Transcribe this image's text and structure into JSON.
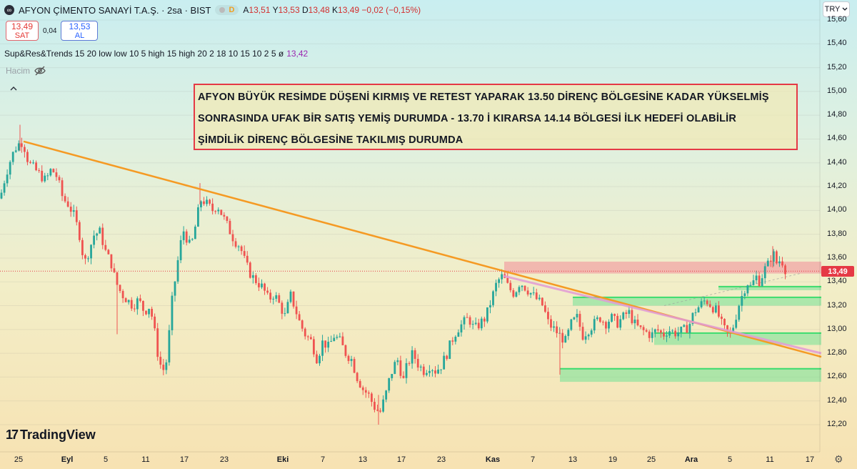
{
  "symbol": {
    "logo_icon": "∞",
    "title": "AFYON ÇİMENTO SANAYİ T.A.Ş. · 2sa · BIST",
    "status_dot_icon": "status-dot",
    "d_badge": "D",
    "ohlc": {
      "o_label": "A",
      "o": "13,51",
      "h_label": "Y",
      "h": "13,53",
      "l_label": "D",
      "l": "13,48",
      "c_label": "K",
      "c": "13,49",
      "change": "−0,02 (−0,15%)"
    }
  },
  "trade": {
    "sell_price": "13,49",
    "sell_label": "SAT",
    "spread": "0,04",
    "buy_price": "13,53",
    "buy_label": "AL"
  },
  "indicator": {
    "text": "Sup&Res&Trends 15 20 low low 10 5 high 15 high 20 2 18 10 15 10 2 5",
    "symbol": "ø",
    "value": "13,42"
  },
  "volume": {
    "label": "Hacim",
    "icon": "eye-off-icon"
  },
  "collapse_icon": "chevron-up-icon",
  "annotation": {
    "lines": [
      "AFYON BÜYÜK RESİMDE DÜŞENİ KIRMIŞ VE RETEST YAPARAK 13.50 DİRENÇ BÖLGESİNE KADAR YÜKSELMİŞ",
      "SONRASINDA UFAK BİR SATIŞ YEMİŞ DURUMDA - 13.70 İ KIRARSA 14.14 BÖLGESİ İLK HEDEFİ OLABİLİR",
      "ŞİMDİLİK DİRENÇ BÖLGESİNE TAKILMIŞ DURUMDA"
    ],
    "border_color": "#e53945"
  },
  "currency": {
    "label": "TRY",
    "icon": "chevron-down-icon"
  },
  "last_price_tag": "13,49",
  "branding": {
    "logo": "17",
    "name": "TradingView"
  },
  "settings_icon": "gear-icon",
  "colors": {
    "up": "#26a69a",
    "down": "#ef5350",
    "trendline": "#f59a23",
    "trendline2": "#e29bd6",
    "resistance_zone": "#f2a6a6",
    "support_zone": "#7de39a",
    "price_line": "#e53945"
  },
  "chart_data": {
    "type": "candlestick",
    "timeframe": "2sa",
    "y_axis_labels": [
      "15,60",
      "15,40",
      "15,20",
      "15,00",
      "14,80",
      "14,60",
      "14,40",
      "14,20",
      "14,00",
      "13,80",
      "13,60",
      "13,40",
      "13,20",
      "13,00",
      "12,80",
      "12,60",
      "12,40",
      "12,20"
    ],
    "x_axis_labels": [
      "25",
      "Eyl",
      "5",
      "11",
      "17",
      "23",
      "Eki",
      "7",
      "13",
      "17",
      "23",
      "Kas",
      "7",
      "13",
      "19",
      "25",
      "Ara",
      "5",
      "11",
      "17"
    ],
    "ylim": [
      12.2,
      15.6
    ],
    "last_price": 13.49,
    "close_path": [
      [
        0,
        14.1
      ],
      [
        8,
        14.3
      ],
      [
        16,
        14.45
      ],
      [
        24,
        14.55
      ],
      [
        32,
        14.58
      ],
      [
        40,
        14.4
      ],
      [
        48,
        14.35
      ],
      [
        56,
        14.3
      ],
      [
        64,
        14.25
      ],
      [
        72,
        14.35
      ],
      [
        80,
        14.28
      ],
      [
        88,
        14.1
      ],
      [
        96,
        14.05
      ],
      [
        104,
        13.95
      ],
      [
        112,
        13.78
      ],
      [
        118,
        13.55
      ],
      [
        124,
        13.65
      ],
      [
        132,
        13.8
      ],
      [
        140,
        13.82
      ],
      [
        148,
        13.65
      ],
      [
        156,
        13.55
      ],
      [
        162,
        13.4
      ],
      [
        170,
        13.3
      ],
      [
        178,
        13.25
      ],
      [
        186,
        13.2
      ],
      [
        194,
        13.25
      ],
      [
        202,
        13.15
      ],
      [
        210,
        13.2
      ],
      [
        216,
        13.0
      ],
      [
        222,
        12.75
      ],
      [
        228,
        12.65
      ],
      [
        234,
        12.75
      ],
      [
        240,
        13.2
      ],
      [
        246,
        13.45
      ],
      [
        252,
        13.7
      ],
      [
        258,
        13.85
      ],
      [
        264,
        13.7
      ],
      [
        270,
        13.75
      ],
      [
        276,
        13.95
      ],
      [
        282,
        14.1
      ],
      [
        290,
        14.05
      ],
      [
        298,
        14.0
      ],
      [
        304,
        14.05
      ],
      [
        312,
        13.95
      ],
      [
        320,
        13.85
      ],
      [
        328,
        13.75
      ],
      [
        336,
        13.7
      ],
      [
        344,
        13.55
      ],
      [
        352,
        13.45
      ],
      [
        360,
        13.4
      ],
      [
        368,
        13.35
      ],
      [
        376,
        13.25
      ],
      [
        384,
        13.3
      ],
      [
        392,
        13.2
      ],
      [
        400,
        13.1
      ],
      [
        406,
        13.3
      ],
      [
        412,
        13.2
      ],
      [
        420,
        13.05
      ],
      [
        428,
        12.95
      ],
      [
        436,
        12.9
      ],
      [
        444,
        12.75
      ],
      [
        452,
        12.9
      ],
      [
        460,
        12.85
      ],
      [
        468,
        12.95
      ],
      [
        476,
        12.9
      ],
      [
        484,
        12.8
      ],
      [
        492,
        12.75
      ],
      [
        500,
        12.6
      ],
      [
        508,
        12.5
      ],
      [
        516,
        12.45
      ],
      [
        524,
        12.35
      ],
      [
        532,
        12.3
      ],
      [
        540,
        12.45
      ],
      [
        546,
        12.6
      ],
      [
        552,
        12.7
      ],
      [
        558,
        12.75
      ],
      [
        564,
        12.55
      ],
      [
        570,
        12.7
      ],
      [
        578,
        12.8
      ],
      [
        586,
        12.7
      ],
      [
        594,
        12.65
      ],
      [
        602,
        12.7
      ],
      [
        610,
        12.65
      ],
      [
        618,
        12.7
      ],
      [
        626,
        12.8
      ],
      [
        632,
        12.9
      ],
      [
        640,
        13.0
      ],
      [
        648,
        13.05
      ],
      [
        656,
        13.1
      ],
      [
        664,
        13.0
      ],
      [
        672,
        13.05
      ],
      [
        680,
        13.1
      ],
      [
        688,
        13.25
      ],
      [
        696,
        13.4
      ],
      [
        704,
        13.45
      ],
      [
        712,
        13.35
      ],
      [
        720,
        13.3
      ],
      [
        728,
        13.4
      ],
      [
        736,
        13.35
      ],
      [
        744,
        13.3
      ],
      [
        752,
        13.25
      ],
      [
        760,
        13.2
      ],
      [
        768,
        13.05
      ],
      [
        776,
        13.0
      ],
      [
        784,
        12.95
      ],
      [
        792,
        12.9
      ],
      [
        800,
        13.05
      ],
      [
        808,
        13.1
      ],
      [
        816,
        12.95
      ],
      [
        824,
        13.0
      ],
      [
        832,
        13.05
      ],
      [
        840,
        13.1
      ],
      [
        848,
        13.05
      ],
      [
        856,
        13.1
      ],
      [
        864,
        13.05
      ],
      [
        872,
        13.1
      ],
      [
        880,
        13.15
      ],
      [
        888,
        13.05
      ],
      [
        896,
        13.0
      ],
      [
        904,
        12.98
      ],
      [
        912,
        12.95
      ],
      [
        920,
        13.0
      ],
      [
        928,
        12.95
      ],
      [
        936,
        13.0
      ],
      [
        944,
        12.97
      ],
      [
        952,
        12.98
      ],
      [
        960,
        13.0
      ],
      [
        966,
        13.05
      ],
      [
        972,
        13.15
      ],
      [
        980,
        13.2
      ],
      [
        988,
        13.25
      ],
      [
        996,
        13.2
      ],
      [
        1004,
        13.15
      ],
      [
        1010,
        13.05
      ],
      [
        1016,
        12.98
      ],
      [
        1022,
        12.95
      ],
      [
        1028,
        13.05
      ],
      [
        1034,
        13.2
      ],
      [
        1040,
        13.3
      ],
      [
        1046,
        13.4
      ],
      [
        1052,
        13.35
      ],
      [
        1058,
        13.45
      ],
      [
        1064,
        13.4
      ],
      [
        1070,
        13.5
      ],
      [
        1076,
        13.55
      ],
      [
        1082,
        13.65
      ],
      [
        1088,
        13.55
      ],
      [
        1094,
        13.6
      ],
      [
        1098,
        13.52
      ],
      [
        1102,
        13.49
      ]
    ],
    "trendlines": [
      {
        "from": [
          33,
          14.58
        ],
        "to": [
          1150,
          12.77
        ],
        "color": "#f59a23"
      },
      {
        "from": [
          705,
          13.45
        ],
        "to": [
          1150,
          12.8
        ],
        "color": "#e29bd6"
      }
    ],
    "zones": [
      {
        "x": [
          706,
          1150
        ],
        "y": [
          13.47,
          13.57
        ],
        "kind": "resistance"
      },
      {
        "x": [
          802,
          1150
        ],
        "y": [
          13.2,
          13.27
        ],
        "kind": "support"
      },
      {
        "x": [
          1006,
          1150
        ],
        "y": [
          13.33,
          13.36
        ],
        "kind": "support"
      },
      {
        "x": [
          916,
          1150
        ],
        "y": [
          12.87,
          12.97
        ],
        "kind": "support"
      },
      {
        "x": [
          784,
          1150
        ],
        "y": [
          12.56,
          12.67
        ],
        "kind": "support"
      }
    ]
  }
}
